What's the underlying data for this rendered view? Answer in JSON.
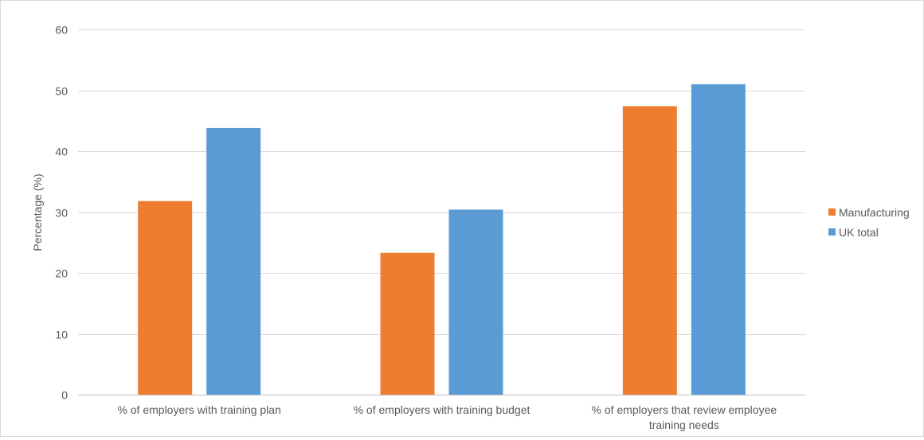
{
  "chart_data": {
    "type": "bar",
    "title": "",
    "xlabel": "",
    "ylabel": "Percentage (%)",
    "ylim": [
      0,
      60
    ],
    "yticks": [
      0,
      10,
      20,
      30,
      40,
      50,
      60
    ],
    "grid": true,
    "legend_position": "right",
    "categories": [
      [
        "% of employers with training plan"
      ],
      [
        "% of employers with training budget"
      ],
      [
        "% of employers that review employee",
        "training needs"
      ]
    ],
    "series": [
      {
        "name": "Manufacturing",
        "color": "#ED7D31",
        "values": [
          31.8,
          23.3,
          47.4
        ]
      },
      {
        "name": "UK total",
        "color": "#5B9BD5",
        "values": [
          43.8,
          30.4,
          51.0
        ]
      }
    ]
  }
}
